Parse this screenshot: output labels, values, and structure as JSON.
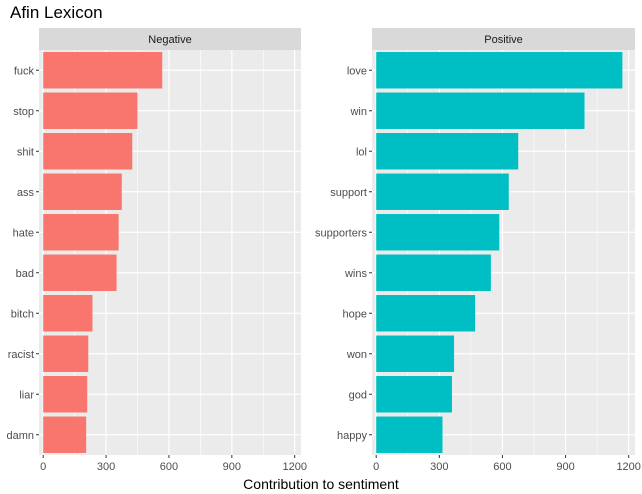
{
  "chart_data": {
    "type": "bar",
    "orientation": "horizontal",
    "title": "Afin Lexicon",
    "xlabel": "Contribution to sentiment",
    "ylabel": "",
    "xlim": [
      -20,
      1230
    ],
    "x_ticks": [
      0,
      300,
      600,
      900,
      1200
    ],
    "grid": true,
    "facets": [
      {
        "name": "Negative",
        "color": "#F8766D",
        "categories": [
          "fuck",
          "stop",
          "shit",
          "ass",
          "hate",
          "bad",
          "bitch",
          "racist",
          "liar",
          "damn"
        ],
        "values": [
          568,
          450,
          425,
          375,
          360,
          350,
          235,
          215,
          210,
          205
        ]
      },
      {
        "name": "Positive",
        "color": "#00BFC4",
        "categories": [
          "love",
          "win",
          "lol",
          "support",
          "supporters",
          "wins",
          "hope",
          "won",
          "god",
          "happy"
        ],
        "values": [
          1170,
          990,
          675,
          630,
          585,
          545,
          470,
          370,
          360,
          315
        ]
      }
    ]
  }
}
